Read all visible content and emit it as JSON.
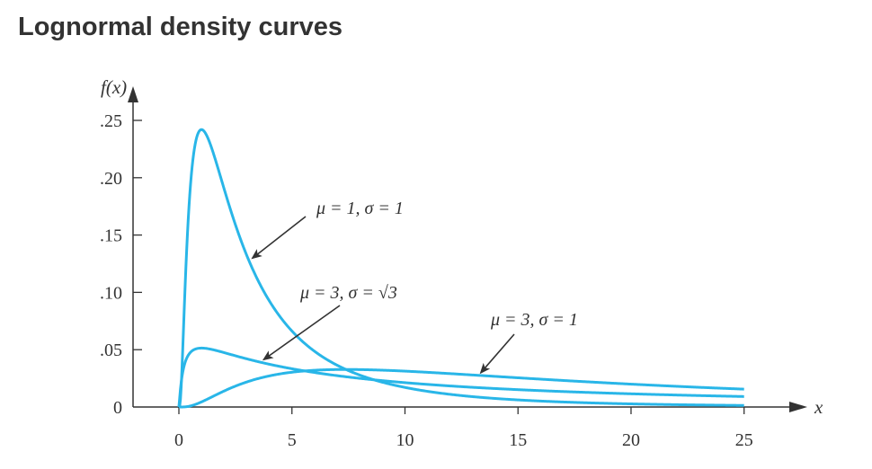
{
  "page_title": "Lognormal density curves",
  "chart_data": {
    "type": "line",
    "xlabel": "x",
    "ylabel": "f(x)",
    "xlim": [
      0,
      27
    ],
    "ylim": [
      0,
      0.25
    ],
    "x_ticks": [
      0,
      5,
      10,
      15,
      20,
      25
    ],
    "x_tick_labels": [
      "0",
      "5",
      "10",
      "15",
      "20",
      "25"
    ],
    "y_ticks": [
      0,
      0.05,
      0.1,
      0.15,
      0.2,
      0.25
    ],
    "y_tick_labels": [
      "0",
      ".05",
      ".10",
      ".15",
      ".20",
      ".25"
    ],
    "grid": false,
    "line_color": "#29b6e8",
    "series": [
      {
        "mu": 1,
        "sigma": 1,
        "x_range": [
          0,
          25
        ]
      },
      {
        "mu": 3,
        "sigma": 1.7320508,
        "x_range": [
          0,
          25
        ]
      },
      {
        "mu": 3,
        "sigma": 1,
        "x_range": [
          0,
          25
        ]
      }
    ],
    "annotations": [
      {
        "mu_text": "μ = 1,",
        "sigma_text": "σ = 1",
        "series_index": 0,
        "target_x": 3.1
      },
      {
        "mu_text": "μ = 3,",
        "sigma_text": "σ = √3",
        "series_index": 1,
        "target_x": 3.6
      },
      {
        "mu_text": "μ = 3,",
        "sigma_text": "σ = 1",
        "series_index": 2,
        "target_x": 13.2
      }
    ]
  }
}
